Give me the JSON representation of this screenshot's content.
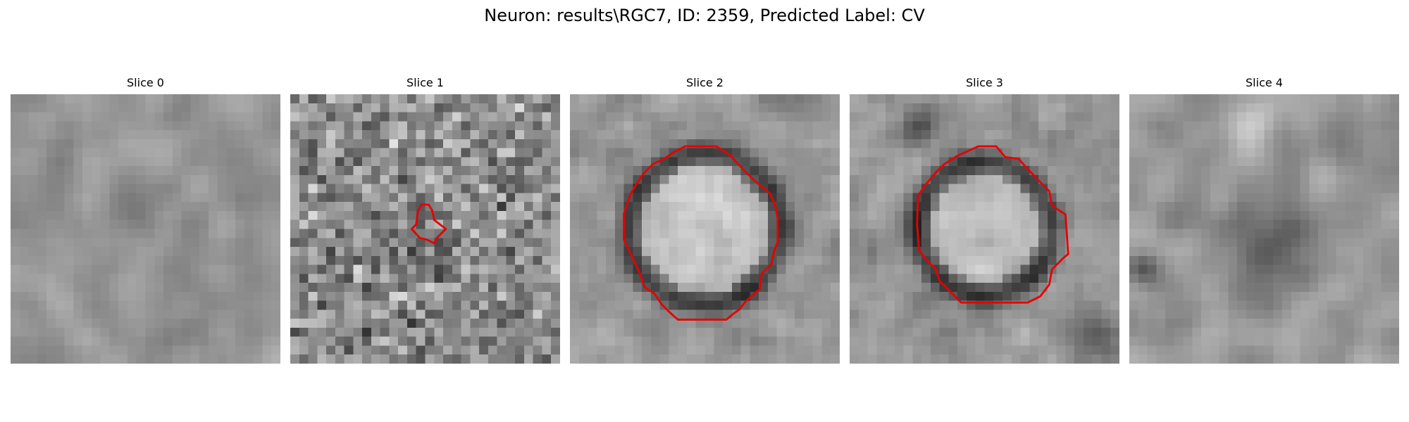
{
  "figure": {
    "title": "Neuron: results\\RGC7, ID: 2359, Predicted Label: CV",
    "contour_color": "#e60000"
  },
  "slices": [
    {
      "title": "Slice 0",
      "contour": false
    },
    {
      "title": "Slice 1",
      "contour": true
    },
    {
      "title": "Slice 2",
      "contour": true
    },
    {
      "title": "Slice 3",
      "contour": true
    },
    {
      "title": "Slice 4",
      "contour": false
    }
  ]
}
